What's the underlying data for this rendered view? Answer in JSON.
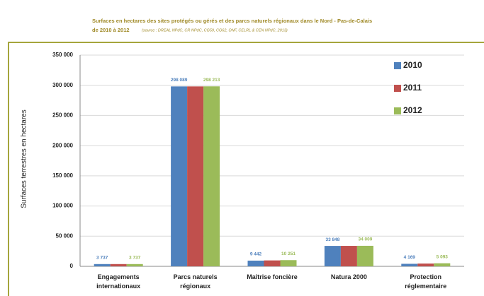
{
  "chart_data": {
    "type": "bar",
    "title": "Surfaces en hectares des sites protégés ou gérés et des parcs naturels régionaux dans le Nord - Pas-de-Calais",
    "subtitle": "de 2010 à 2012",
    "source": "(source : DREAL NPdC, CR NPdC, CG59, CG62, ONF, CELRL & CEN NPdC, 2013)",
    "y_label": "Surfaces terrestres en hectares",
    "categories": [
      "Engagements internationaux",
      "Parcs naturels régionaux",
      "Maîtrise foncière",
      "Natura 2000",
      "Protection réglementaire"
    ],
    "series": [
      {
        "name": "2010",
        "color": "#4f81bd",
        "values": [
          3737,
          298089,
          9442,
          33848,
          4169
        ],
        "value_labels": [
          "3 737",
          "298 089",
          "9 442",
          "33 848",
          "4 169"
        ]
      },
      {
        "name": "2011",
        "color": "#c0504d",
        "values": [
          3737,
          298100,
          9800,
          33900,
          4600
        ]
      },
      {
        "name": "2012",
        "color": "#9bbb59",
        "values": [
          3737,
          298213,
          10251,
          34009,
          5093
        ],
        "value_labels": [
          "3 737",
          "298 213",
          "10 251",
          "34 009",
          "5 093"
        ]
      }
    ],
    "ylim": [
      0,
      350000
    ],
    "yticks": [
      0,
      {
        "value": 50000,
        "label": "50 000"
      },
      {
        "value": 100000,
        "label": "100 000"
      },
      {
        "value": 150000,
        "label": "150 000"
      },
      {
        "value": 200000,
        "label": "200 000"
      },
      {
        "value": 250000,
        "label": "250 000"
      },
      {
        "value": 300000,
        "label": "300 000"
      },
      {
        "value": 350000,
        "label": "350 000"
      }
    ],
    "grid": true,
    "legend": "top-right"
  }
}
